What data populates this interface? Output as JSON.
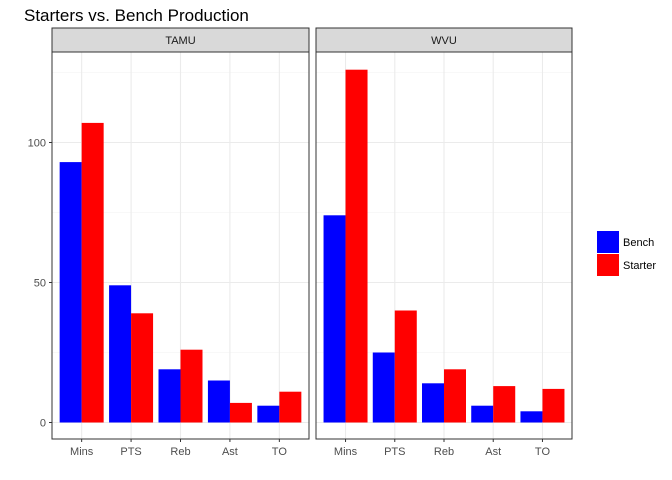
{
  "chart_data": {
    "type": "bar",
    "title": "Starters vs. Bench Production",
    "xlabel": "",
    "ylabel": "",
    "ylim": [
      0,
      132
    ],
    "yticks": [
      0,
      50,
      100
    ],
    "grid": true,
    "legend_position": "right",
    "categories": [
      "Mins",
      "PTS",
      "Reb",
      "Ast",
      "TO"
    ],
    "facets": [
      {
        "name": "TAMU",
        "series": [
          {
            "name": "Bench",
            "values": [
              93,
              49,
              19,
              15,
              6
            ]
          },
          {
            "name": "Starter",
            "values": [
              107,
              39,
              26,
              7,
              11
            ]
          }
        ]
      },
      {
        "name": "WVU",
        "series": [
          {
            "name": "Bench",
            "values": [
              74,
              25,
              14,
              6,
              4
            ]
          },
          {
            "name": "Starter",
            "values": [
              126,
              40,
              19,
              13,
              12
            ]
          }
        ]
      }
    ],
    "legend": [
      {
        "label": "Bench",
        "color": "#0000ff"
      },
      {
        "label": "Starter",
        "color": "#ff0000"
      }
    ]
  }
}
